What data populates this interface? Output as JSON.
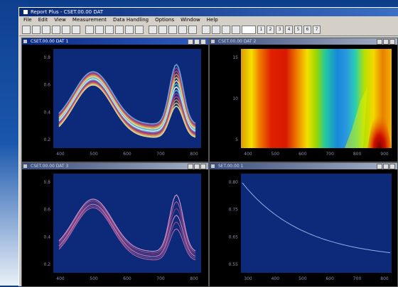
{
  "app": {
    "title": "Report Plus - CSET.00.00 DAT",
    "menu": [
      "File",
      "Edit",
      "View",
      "Measurement",
      "Data Handling",
      "Options",
      "Window",
      "Help"
    ]
  },
  "toolbar": {
    "icons": [
      "new-icon",
      "open-icon",
      "save-icon",
      "print-icon",
      "zoom-in-icon",
      "zoom-out-icon",
      "grid-icon",
      "fit-icon",
      "copy-icon",
      "paste-icon",
      "cursor-icon",
      "peak-icon",
      "axis-icon",
      "color-icon",
      "table-icon",
      "chart-icon",
      "export-icon",
      "one-icon",
      "two-icon",
      "three-icon",
      "four-icon"
    ],
    "page_labels": [
      "1",
      "2",
      "3",
      "4",
      "5",
      "6",
      "7"
    ]
  },
  "windows": {
    "top_left": {
      "title": "CSET.00.00 DAT 1"
    },
    "top_right": {
      "title": "CSET.00.00 DAT 2"
    },
    "bottom_left": {
      "title": "CSET.00.00 DAT 3"
    },
    "bottom_right": {
      "title": "SET.00.00 1"
    }
  },
  "charts": {
    "top_left": {
      "y_ticks": [
        "0.8",
        "0.6",
        "0.4",
        "0.2"
      ],
      "x_ticks": [
        "400",
        "500",
        "600",
        "700",
        "800"
      ]
    },
    "top_right": {
      "y_ticks": [
        "15",
        "10",
        "5"
      ],
      "x_ticks": [
        "400",
        "500",
        "600",
        "700",
        "800",
        "900"
      ]
    },
    "bottom_left": {
      "y_ticks": [
        "0.8",
        "0.6",
        "0.4",
        "0.2"
      ],
      "x_ticks": [
        "400",
        "500",
        "600",
        "700",
        "800"
      ]
    },
    "bottom_right": {
      "y_ticks": [
        "0.80",
        "0.75",
        "0.65",
        "0.55"
      ],
      "x_ticks": [
        "300",
        "400",
        "500",
        "600",
        "700",
        "800"
      ]
    }
  },
  "colors": {
    "plot_bg": "#0d2a7a",
    "line_colors": [
      "#f2e8b0",
      "#e8c070",
      "#d88a4a",
      "#c04a6a",
      "#9a3ea0",
      "#6fb0d8",
      "#ffffff",
      "#48c0c8"
    ]
  },
  "statusbar": {
    "text": ""
  }
}
